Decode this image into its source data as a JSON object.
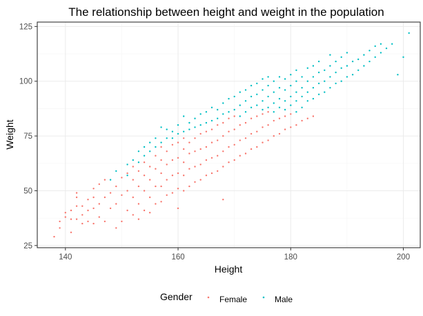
{
  "chart_data": {
    "type": "scatter",
    "title": "The relationship between height and weight in the population",
    "xlabel": "Height",
    "ylabel": "Weight",
    "xlim": [
      135,
      203
    ],
    "ylim": [
      24,
      127
    ],
    "x_ticks": [
      140,
      160,
      180,
      200
    ],
    "y_ticks": [
      25,
      50,
      75,
      100,
      125
    ],
    "grid": true,
    "legend": {
      "title": "Gender",
      "position": "bottom",
      "entries": [
        "Female",
        "Male"
      ]
    },
    "colors": {
      "Female": "#F8766D",
      "Male": "#00BFC4"
    },
    "series": [
      {
        "name": "Female",
        "points": [
          [
            138,
            29
          ],
          [
            139,
            33
          ],
          [
            139,
            36
          ],
          [
            140,
            38
          ],
          [
            140,
            40
          ],
          [
            141,
            31
          ],
          [
            141,
            37
          ],
          [
            141,
            41
          ],
          [
            142,
            37
          ],
          [
            142,
            43
          ],
          [
            142,
            47
          ],
          [
            142,
            49
          ],
          [
            143,
            35
          ],
          [
            143,
            39
          ],
          [
            143,
            43
          ],
          [
            144,
            36
          ],
          [
            144,
            41
          ],
          [
            144,
            46
          ],
          [
            145,
            35
          ],
          [
            145,
            42
          ],
          [
            145,
            47
          ],
          [
            145,
            51
          ],
          [
            146,
            38
          ],
          [
            146,
            44
          ],
          [
            146,
            53
          ],
          [
            147,
            36
          ],
          [
            147,
            47
          ],
          [
            147,
            55
          ],
          [
            148,
            42
          ],
          [
            148,
            49
          ],
          [
            149,
            33
          ],
          [
            149,
            44
          ],
          [
            149,
            52
          ],
          [
            150,
            36
          ],
          [
            150,
            48
          ],
          [
            150,
            56
          ],
          [
            151,
            41
          ],
          [
            151,
            50
          ],
          [
            151,
            58
          ],
          [
            152,
            39
          ],
          [
            152,
            47
          ],
          [
            152,
            55
          ],
          [
            152,
            61
          ],
          [
            153,
            37
          ],
          [
            153,
            44
          ],
          [
            153,
            52
          ],
          [
            153,
            59
          ],
          [
            154,
            41
          ],
          [
            154,
            50
          ],
          [
            154,
            57
          ],
          [
            154,
            63
          ],
          [
            155,
            40
          ],
          [
            155,
            47
          ],
          [
            155,
            55
          ],
          [
            155,
            61
          ],
          [
            156,
            44
          ],
          [
            156,
            52
          ],
          [
            156,
            60
          ],
          [
            156,
            66
          ],
          [
            157,
            45
          ],
          [
            157,
            52
          ],
          [
            157,
            58
          ],
          [
            157,
            64
          ],
          [
            157,
            70
          ],
          [
            158,
            48
          ],
          [
            158,
            55
          ],
          [
            158,
            62
          ],
          [
            158,
            68
          ],
          [
            159,
            49
          ],
          [
            159,
            57
          ],
          [
            159,
            64
          ],
          [
            159,
            71
          ],
          [
            160,
            42
          ],
          [
            160,
            51
          ],
          [
            160,
            58
          ],
          [
            160,
            65
          ],
          [
            160,
            72
          ],
          [
            161,
            50
          ],
          [
            161,
            57
          ],
          [
            161,
            63
          ],
          [
            161,
            69
          ],
          [
            161,
            74
          ],
          [
            162,
            52
          ],
          [
            162,
            60
          ],
          [
            162,
            67
          ],
          [
            162,
            72
          ],
          [
            163,
            54
          ],
          [
            163,
            61
          ],
          [
            163,
            68
          ],
          [
            163,
            74
          ],
          [
            164,
            55
          ],
          [
            164,
            62
          ],
          [
            164,
            69
          ],
          [
            164,
            76
          ],
          [
            165,
            57
          ],
          [
            165,
            64
          ],
          [
            165,
            70
          ],
          [
            165,
            77
          ],
          [
            166,
            58
          ],
          [
            166,
            65
          ],
          [
            166,
            72
          ],
          [
            166,
            78
          ],
          [
            167,
            59
          ],
          [
            167,
            66
          ],
          [
            167,
            73
          ],
          [
            167,
            80
          ],
          [
            168,
            46
          ],
          [
            168,
            61
          ],
          [
            168,
            68
          ],
          [
            168,
            75
          ],
          [
            168,
            81
          ],
          [
            169,
            63
          ],
          [
            169,
            70
          ],
          [
            169,
            77
          ],
          [
            169,
            83
          ],
          [
            170,
            64
          ],
          [
            170,
            71
          ],
          [
            170,
            78
          ],
          [
            170,
            84
          ],
          [
            171,
            66
          ],
          [
            171,
            73
          ],
          [
            171,
            80
          ],
          [
            172,
            67
          ],
          [
            172,
            74
          ],
          [
            172,
            81
          ],
          [
            173,
            69
          ],
          [
            173,
            76
          ],
          [
            173,
            83
          ],
          [
            174,
            70
          ],
          [
            174,
            77
          ],
          [
            174,
            84
          ],
          [
            175,
            72
          ],
          [
            175,
            79
          ],
          [
            175,
            85
          ],
          [
            176,
            73
          ],
          [
            176,
            80
          ],
          [
            176,
            86
          ],
          [
            177,
            75
          ],
          [
            177,
            82
          ],
          [
            178,
            76
          ],
          [
            178,
            83
          ],
          [
            179,
            78
          ],
          [
            179,
            84
          ],
          [
            180,
            79
          ],
          [
            180,
            85
          ],
          [
            181,
            80
          ],
          [
            182,
            82
          ],
          [
            183,
            83
          ],
          [
            184,
            84
          ]
        ]
      },
      {
        "name": "Male",
        "points": [
          [
            148,
            55
          ],
          [
            149,
            59
          ],
          [
            151,
            57
          ],
          [
            151,
            62
          ],
          [
            152,
            64
          ],
          [
            153,
            63
          ],
          [
            153,
            68
          ],
          [
            154,
            66
          ],
          [
            154,
            70
          ],
          [
            155,
            68
          ],
          [
            155,
            72
          ],
          [
            156,
            70
          ],
          [
            156,
            74
          ],
          [
            157,
            72
          ],
          [
            157,
            79
          ],
          [
            158,
            74
          ],
          [
            158,
            78
          ],
          [
            159,
            74
          ],
          [
            159,
            77
          ],
          [
            160,
            76
          ],
          [
            160,
            80
          ],
          [
            161,
            77
          ],
          [
            161,
            84
          ],
          [
            162,
            78
          ],
          [
            162,
            81
          ],
          [
            163,
            79
          ],
          [
            163,
            83
          ],
          [
            164,
            80
          ],
          [
            164,
            85
          ],
          [
            165,
            81
          ],
          [
            165,
            86
          ],
          [
            166,
            82
          ],
          [
            166,
            88
          ],
          [
            167,
            83
          ],
          [
            167,
            87
          ],
          [
            168,
            85
          ],
          [
            168,
            90
          ],
          [
            169,
            86
          ],
          [
            169,
            92
          ],
          [
            170,
            87
          ],
          [
            170,
            93
          ],
          [
            171,
            84
          ],
          [
            171,
            89
          ],
          [
            171,
            95
          ],
          [
            172,
            86
          ],
          [
            172,
            91
          ],
          [
            172,
            96
          ],
          [
            173,
            88
          ],
          [
            173,
            93
          ],
          [
            173,
            98
          ],
          [
            174,
            89
          ],
          [
            174,
            94
          ],
          [
            174,
            99
          ],
          [
            175,
            87
          ],
          [
            175,
            91
          ],
          [
            175,
            96
          ],
          [
            175,
            101
          ],
          [
            176,
            88
          ],
          [
            176,
            93
          ],
          [
            176,
            98
          ],
          [
            176,
            102
          ],
          [
            177,
            86
          ],
          [
            177,
            90
          ],
          [
            177,
            95
          ],
          [
            177,
            100
          ],
          [
            178,
            88
          ],
          [
            178,
            92
          ],
          [
            178,
            97
          ],
          [
            178,
            102
          ],
          [
            179,
            87
          ],
          [
            179,
            91
          ],
          [
            179,
            96
          ],
          [
            179,
            101
          ],
          [
            180,
            89
          ],
          [
            180,
            93
          ],
          [
            180,
            98
          ],
          [
            180,
            103
          ],
          [
            181,
            86
          ],
          [
            181,
            91
          ],
          [
            181,
            95
          ],
          [
            181,
            100
          ],
          [
            181,
            105
          ],
          [
            182,
            88
          ],
          [
            182,
            93
          ],
          [
            182,
            97
          ],
          [
            182,
            102
          ],
          [
            183,
            91
          ],
          [
            183,
            95
          ],
          [
            183,
            100
          ],
          [
            183,
            106
          ],
          [
            184,
            92
          ],
          [
            184,
            97
          ],
          [
            184,
            102
          ],
          [
            184,
            107
          ],
          [
            185,
            94
          ],
          [
            185,
            99
          ],
          [
            185,
            104
          ],
          [
            185,
            109
          ],
          [
            186,
            95
          ],
          [
            186,
            100
          ],
          [
            186,
            105
          ],
          [
            187,
            97
          ],
          [
            187,
            102
          ],
          [
            187,
            107
          ],
          [
            187,
            112
          ],
          [
            188,
            99
          ],
          [
            188,
            104
          ],
          [
            188,
            109
          ],
          [
            189,
            100
          ],
          [
            189,
            106
          ],
          [
            189,
            111
          ],
          [
            190,
            102
          ],
          [
            190,
            107
          ],
          [
            190,
            113
          ],
          [
            191,
            103
          ],
          [
            191,
            109
          ],
          [
            192,
            105
          ],
          [
            192,
            110
          ],
          [
            193,
            107
          ],
          [
            193,
            112
          ],
          [
            194,
            109
          ],
          [
            194,
            114
          ],
          [
            195,
            111
          ],
          [
            195,
            116
          ],
          [
            196,
            113
          ],
          [
            196,
            117
          ],
          [
            197,
            115
          ],
          [
            198,
            117
          ],
          [
            199,
            103
          ],
          [
            200,
            111
          ],
          [
            201,
            122
          ]
        ]
      }
    ]
  }
}
